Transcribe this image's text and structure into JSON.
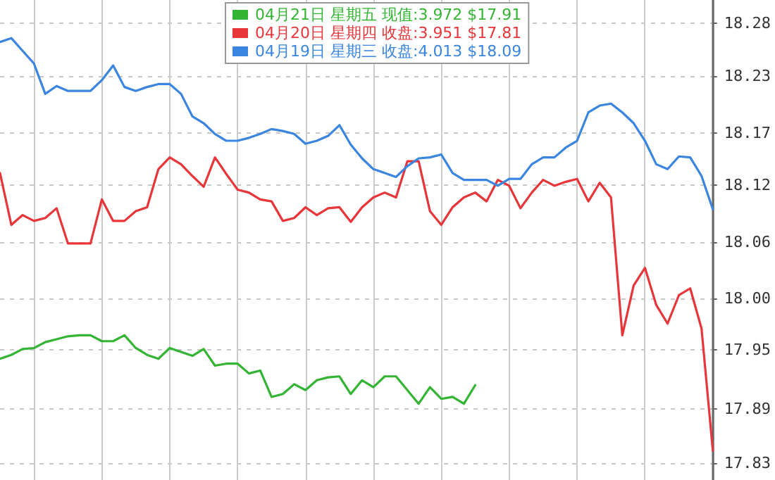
{
  "chart_data": {
    "type": "line",
    "categories": [
      null,
      null,
      null,
      null,
      null,
      null,
      null,
      null,
      null,
      null,
      null,
      null,
      null,
      null,
      null,
      null,
      null,
      null,
      null,
      null,
      null,
      null,
      null,
      null,
      null,
      null,
      null,
      null,
      null,
      null,
      null,
      null,
      null,
      null,
      null,
      null,
      null,
      null,
      null,
      null,
      null,
      null,
      null,
      null,
      null,
      null,
      null,
      null,
      null,
      null,
      null,
      null,
      null,
      null,
      null,
      null,
      null,
      null,
      null,
      null,
      null,
      null,
      null,
      null
    ],
    "series": [
      {
        "name": "04月21日 星期五 现值:3.972 $17.91",
        "color": "#33b533",
        "values": [
          17.937,
          17.941,
          17.947,
          17.948,
          17.954,
          17.957,
          17.96,
          17.961,
          17.961,
          17.955,
          17.955,
          17.961,
          17.948,
          17.941,
          17.937,
          17.948,
          17.944,
          17.94,
          17.947,
          17.93,
          17.932,
          17.932,
          17.922,
          17.925,
          17.898,
          17.901,
          17.911,
          17.905,
          17.915,
          17.918,
          17.919,
          17.901,
          17.915,
          17.908,
          17.919,
          17.919,
          17.905,
          17.891,
          17.908,
          17.896,
          17.898,
          17.891,
          17.91,
          null,
          null,
          null,
          null,
          null,
          null,
          null,
          null,
          null,
          null,
          null,
          null,
          null,
          null,
          null,
          null,
          null,
          null,
          null,
          null,
          null
        ]
      },
      {
        "name": "04月20日 星期四 收盘:3.951 $17.81",
        "color": "#e8353a",
        "values": [
          18.127,
          18.074,
          18.084,
          18.078,
          18.081,
          18.091,
          18.055,
          18.055,
          18.055,
          18.1,
          18.078,
          18.078,
          18.088,
          18.092,
          18.131,
          18.143,
          18.136,
          18.124,
          18.113,
          18.143,
          18.126,
          18.11,
          18.107,
          18.1,
          18.098,
          18.078,
          18.081,
          18.092,
          18.084,
          18.091,
          18.092,
          18.077,
          18.092,
          18.102,
          18.107,
          18.102,
          18.139,
          18.139,
          18.088,
          18.074,
          18.092,
          18.102,
          18.107,
          18.098,
          18.12,
          18.114,
          18.091,
          18.107,
          18.12,
          18.114,
          18.118,
          18.121,
          18.098,
          18.117,
          18.102,
          17.961,
          18.012,
          18.03,
          17.992,
          17.973,
          18.002,
          18.009,
          17.968,
          17.843
        ]
      },
      {
        "name": "04月19日 星期三 收盘:4.013 $18.09",
        "color": "#3a85e0",
        "values": [
          18.261,
          18.265,
          18.252,
          18.239,
          18.208,
          18.216,
          18.211,
          18.211,
          18.211,
          18.222,
          18.237,
          18.215,
          18.211,
          18.215,
          18.218,
          18.218,
          18.208,
          18.185,
          18.178,
          18.167,
          18.16,
          18.16,
          18.163,
          18.167,
          18.172,
          18.17,
          18.167,
          18.157,
          18.16,
          18.165,
          18.176,
          18.156,
          18.142,
          18.131,
          18.127,
          18.123,
          18.134,
          18.142,
          18.143,
          18.146,
          18.127,
          18.12,
          18.12,
          18.12,
          18.114,
          18.121,
          18.121,
          18.136,
          18.143,
          18.143,
          18.153,
          18.16,
          18.189,
          18.196,
          18.198,
          18.189,
          18.178,
          18.16,
          18.136,
          18.131,
          18.144,
          18.143,
          18.124,
          18.09
        ]
      }
    ],
    "ylim": [
      17.813,
      18.304
    ],
    "yticks": [
      {
        "value": 17.83,
        "label": "17.83"
      },
      {
        "value": 17.886,
        "label": "17.89"
      },
      {
        "value": 17.946,
        "label": "17.95"
      },
      {
        "value": 17.999,
        "label": "18.00"
      },
      {
        "value": 18.056,
        "label": "18.06"
      },
      {
        "value": 18.115,
        "label": "18.12"
      },
      {
        "value": 18.168,
        "label": "18.17"
      },
      {
        "value": 18.226,
        "label": "18.23"
      },
      {
        "value": 18.28,
        "label": "18.28"
      }
    ],
    "grid": true,
    "legend": "top",
    "marker": "none",
    "line_style": "solid"
  }
}
